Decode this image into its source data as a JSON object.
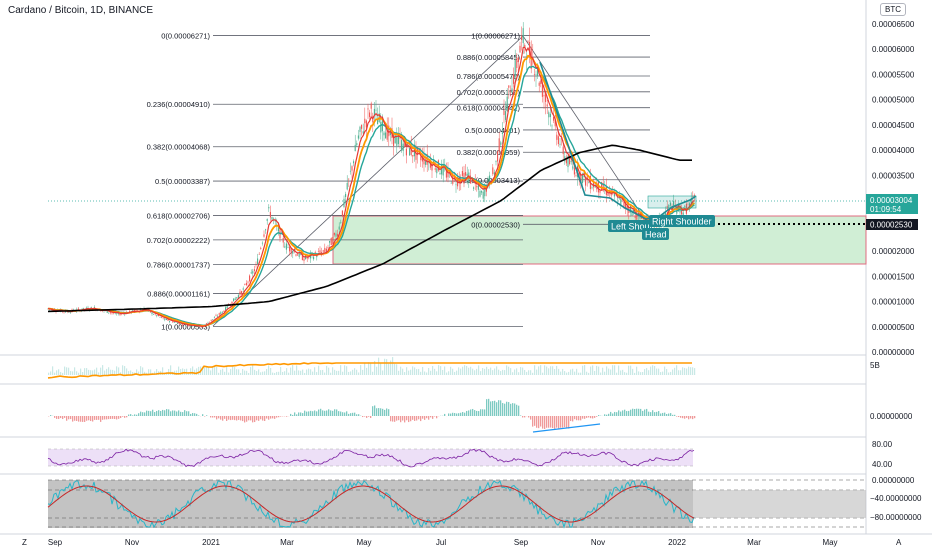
{
  "header": {
    "title": "Cardano / Bitcoin, 1D, BINANCE",
    "currency_badge": "BTC"
  },
  "colors": {
    "fib_line": "#5d606b",
    "ema_fast": "#e53935",
    "ema_mid": "#ff9800",
    "ema_slow": "#26a69a",
    "ma_long": "#000000",
    "pattern": "#1f8a93",
    "box_fill": "#c8ebce",
    "box_border": "#e06b80",
    "rsi_band": "#ede0f7",
    "rsi_line": "#7b1fa2",
    "stoch_k": "#29b6c9",
    "stoch_d": "#c62828",
    "stoch_bg": "#bdbdbd"
  },
  "chart_data": {
    "type": "line",
    "title": "Cardano / Bitcoin, 1D, BINANCE",
    "y_axis_ticks": [
      "0.00006500",
      "0.00006000",
      "0.00005500",
      "0.00005000",
      "0.00004500",
      "0.00004000",
      "0.00003500",
      "0.00003000",
      "0.00002500",
      "0.00002000",
      "0.00001500",
      "0.00001000",
      "0.00000500",
      "0.00000000"
    ],
    "ylim": [
      0,
      6.5e-05
    ],
    "x_axis_ticks": [
      "Sep",
      "Nov",
      "2021",
      "Mar",
      "May",
      "Jul",
      "Sep",
      "Nov",
      "2022",
      "Mar",
      "May"
    ],
    "price_label": {
      "value": "0.00003004",
      "countdown": "01:09:54"
    },
    "neckline_label": "0.00002530",
    "fib_retracement_1": [
      {
        "label": "0(0.00006271)",
        "value": 6.271e-05
      },
      {
        "label": "0.236(0.00004910)",
        "value": 4.91e-05
      },
      {
        "label": "0.382(0.00004068)",
        "value": 4.068e-05
      },
      {
        "label": "0.5(0.00003387)",
        "value": 3.387e-05
      },
      {
        "label": "0.618(0.00002706)",
        "value": 2.706e-05
      },
      {
        "label": "0.702(0.00002222)",
        "value": 2.222e-05
      },
      {
        "label": "0.786(0.00001737)",
        "value": 1.737e-05
      },
      {
        "label": "0.886(0.00001161)",
        "value": 1.161e-05
      },
      {
        "label": "1(0.00000503)",
        "value": 5.03e-06
      }
    ],
    "fib_retracement_2": [
      {
        "label": "1(0.00006271)",
        "value": 6.271e-05
      },
      {
        "label": "0.886(0.00005845)",
        "value": 5.845e-05
      },
      {
        "label": "0.786(0.00005470)",
        "value": 5.47e-05
      },
      {
        "label": "0.702(0.00005156)",
        "value": 5.156e-05
      },
      {
        "label": "0.618(0.00004842)",
        "value": 4.842e-05
      },
      {
        "label": "0.5(0.00004401)",
        "value": 4.401e-05
      },
      {
        "label": "0.382(0.00003959)",
        "value": 3.959e-05
      },
      {
        "label": "0.236(0.00003413)",
        "value": 3.413e-05
      },
      {
        "label": "0(0.00002530)",
        "value": 2.53e-05
      }
    ],
    "pattern_labels": [
      "Left Shoulder",
      "Head",
      "Right Shoulder"
    ],
    "price_series": [
      [
        "2020-08-20",
        8.8e-06
      ],
      [
        "2020-09-10",
        8e-06
      ],
      [
        "2020-10-01",
        8.7e-06
      ],
      [
        "2020-10-20",
        7.5e-06
      ],
      [
        "2020-11-10",
        8.5e-06
      ],
      [
        "2020-11-25",
        6.5e-06
      ],
      [
        "2020-12-10",
        5.5e-06
      ],
      [
        "2020-12-25",
        5e-06
      ],
      [
        "2021-01-10",
        8e-06
      ],
      [
        "2021-01-25",
        1.2e-05
      ],
      [
        "2021-02-05",
        1.7e-05
      ],
      [
        "2021-02-15",
        2.8e-05
      ],
      [
        "2021-02-28",
        2.1e-05
      ],
      [
        "2021-03-15",
        1.85e-05
      ],
      [
        "2021-03-31",
        2e-05
      ],
      [
        "2021-04-10",
        2.4e-05
      ],
      [
        "2021-04-25",
        4.2e-05
      ],
      [
        "2021-05-05",
        4.8e-05
      ],
      [
        "2021-05-20",
        4.3e-05
      ],
      [
        "2021-06-05",
        4e-05
      ],
      [
        "2021-06-25",
        3.7e-05
      ],
      [
        "2021-07-10",
        3.4e-05
      ],
      [
        "2021-07-20",
        3.5e-05
      ],
      [
        "2021-07-31",
        3.1e-05
      ],
      [
        "2021-08-10",
        3.6e-05
      ],
      [
        "2021-08-20",
        5e-05
      ],
      [
        "2021-09-01",
        6.2e-05
      ],
      [
        "2021-09-10",
        5.7e-05
      ],
      [
        "2021-09-25",
        4.5e-05
      ],
      [
        "2021-10-05",
        3.8e-05
      ],
      [
        "2021-10-20",
        3.4e-05
      ],
      [
        "2021-11-05",
        3.2e-05
      ],
      [
        "2021-11-20",
        2.9e-05
      ],
      [
        "2021-12-05",
        2.6e-05
      ],
      [
        "2021-12-15",
        2.5e-05
      ],
      [
        "2021-12-25",
        2.9e-05
      ],
      [
        "2022-01-05",
        2.8e-05
      ],
      [
        "2022-01-12",
        3e-05
      ]
    ],
    "ma_long_series": [
      [
        "2020-08-20",
        8e-06
      ],
      [
        "2020-11-01",
        8.5e-06
      ],
      [
        "2021-01-01",
        9e-06
      ],
      [
        "2021-02-15",
        1e-05
      ],
      [
        "2021-04-01",
        1.3e-05
      ],
      [
        "2021-05-15",
        1.75e-05
      ],
      [
        "2021-07-01",
        2.4e-05
      ],
      [
        "2021-08-15",
        3e-05
      ],
      [
        "2021-09-15",
        3.6e-05
      ],
      [
        "2021-10-15",
        3.95e-05
      ],
      [
        "2021-11-10",
        4.1e-05
      ],
      [
        "2021-12-01",
        4e-05
      ],
      [
        "2022-01-01",
        3.8e-05
      ]
    ]
  }
}
